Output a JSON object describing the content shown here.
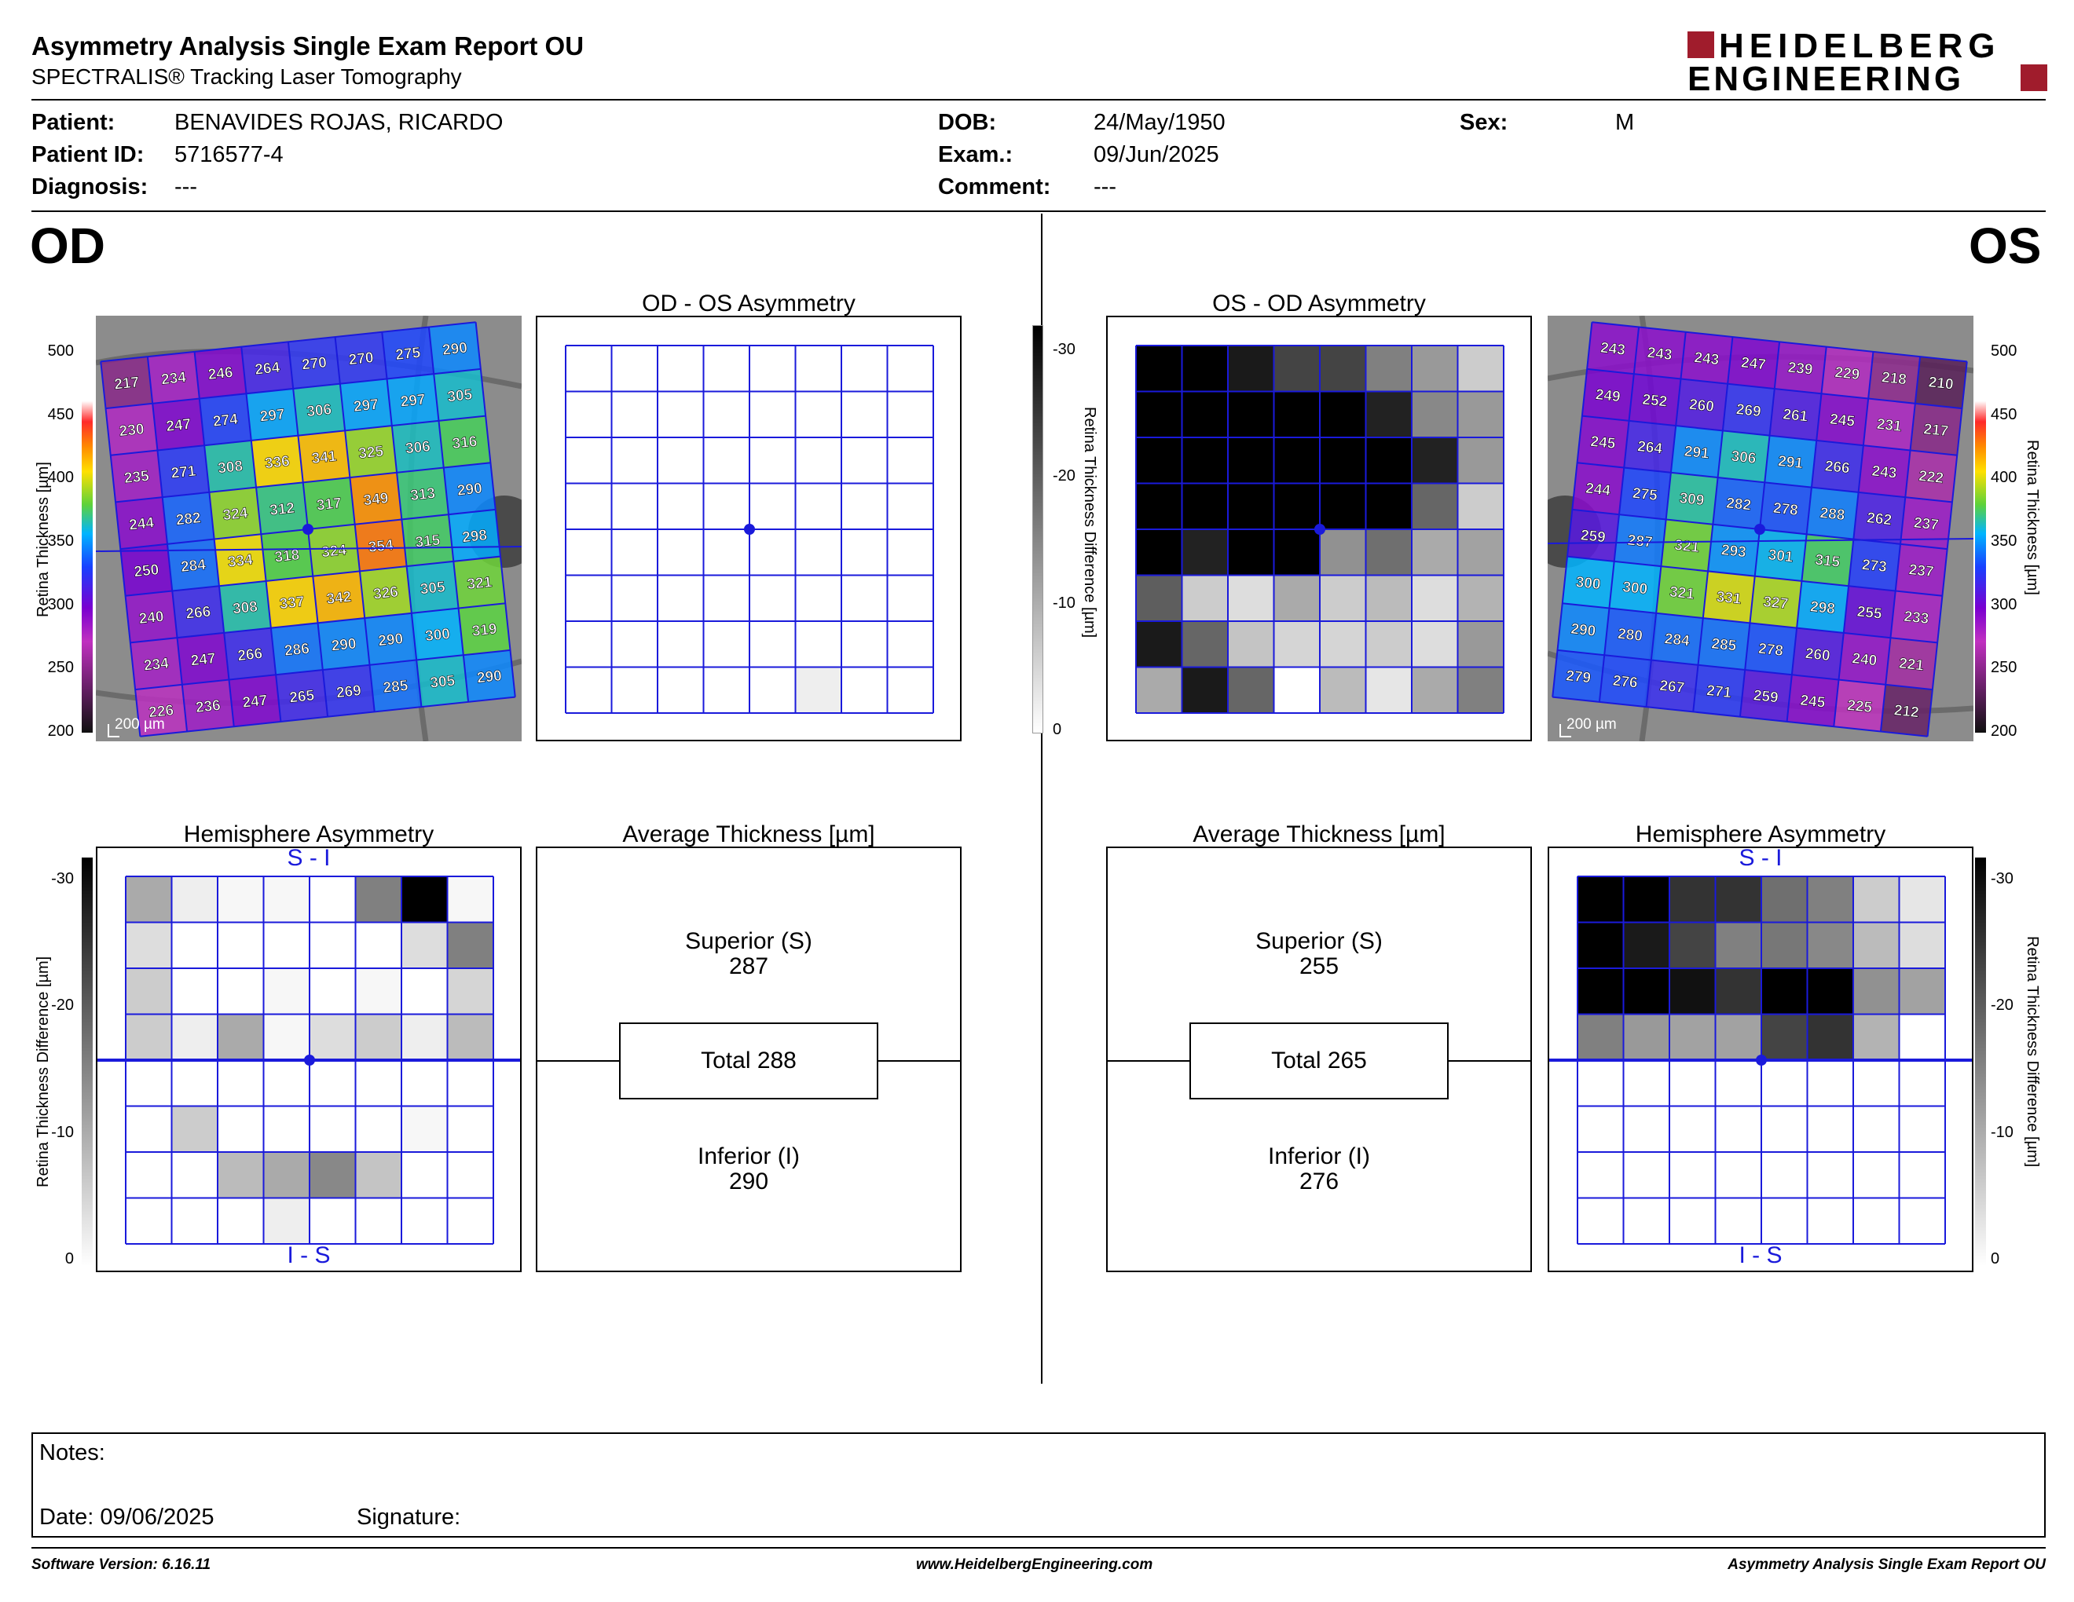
{
  "header": {
    "title": "Asymmetry Analysis Single Exam Report OU",
    "subtitle": "SPECTRALIS® Tracking Laser Tomography",
    "logo_line1": "HEIDELBERG",
    "logo_line2": "ENGINEERING"
  },
  "patient": {
    "patient_label": "Patient:",
    "patient_value": "BENAVIDES ROJAS, RICARDO",
    "id_label": "Patient ID:",
    "id_value": "5716577-4",
    "diagnosis_label": "Diagnosis:",
    "diagnosis_value": "---",
    "dob_label": "DOB:",
    "dob_value": "24/May/1950",
    "exam_label": "Exam.:",
    "exam_value": "09/Jun/2025",
    "comment_label": "Comment:",
    "comment_value": "---",
    "sex_label": "Sex:",
    "sex_value": "M"
  },
  "eyes": {
    "od": "OD",
    "os": "OS"
  },
  "panels": {
    "od_asym_title": "OD - OS Asymmetry",
    "os_asym_title": "OS - OD Asymmetry",
    "hemi_title": "Hemisphere Asymmetry",
    "avg_title": "Average Thickness [µm]",
    "si": "S - I",
    "is": "I - S",
    "scale_bar": "200 µm"
  },
  "scales": {
    "thickness_label": "Retina  Thickness [µm]",
    "thickness_ticks": [
      "500",
      "450",
      "400",
      "350",
      "300",
      "250",
      "200"
    ],
    "diff_label": "Retina Thickness Difference [µm]",
    "diff_ticks": [
      "-30",
      "-20",
      "-10",
      "0"
    ]
  },
  "od_avg": {
    "superior_label": "Superior (S)",
    "superior": "287",
    "total": "Total 288",
    "inferior_label": "Inferior (I)",
    "inferior": "290"
  },
  "os_avg": {
    "superior_label": "Superior (S)",
    "superior": "255",
    "total": "Total 265",
    "inferior_label": "Inferior (I)",
    "inferior": "276"
  },
  "od_thickness": [
    [
      217,
      234,
      246,
      264,
      270,
      270,
      275,
      290
    ],
    [
      230,
      247,
      274,
      297,
      306,
      297,
      297,
      305
    ],
    [
      235,
      271,
      308,
      336,
      341,
      325,
      306,
      316
    ],
    [
      244,
      282,
      324,
      312,
      317,
      349,
      313,
      290
    ],
    [
      250,
      284,
      334,
      318,
      324,
      354,
      315,
      298
    ],
    [
      240,
      266,
      308,
      337,
      342,
      326,
      305,
      321
    ],
    [
      234,
      247,
      266,
      286,
      290,
      290,
      300,
      319
    ],
    [
      226,
      236,
      247,
      265,
      269,
      285,
      305,
      290
    ]
  ],
  "os_thickness": [
    [
      243,
      243,
      243,
      247,
      239,
      229,
      218,
      210
    ],
    [
      249,
      252,
      260,
      269,
      261,
      245,
      231,
      217
    ],
    [
      245,
      264,
      291,
      306,
      291,
      266,
      243,
      222
    ],
    [
      244,
      275,
      309,
      282,
      278,
      288,
      262,
      237
    ],
    [
      259,
      287,
      321,
      293,
      301,
      315,
      273,
      237
    ],
    [
      300,
      300,
      321,
      331,
      327,
      298,
      255,
      233
    ],
    [
      290,
      280,
      284,
      285,
      278,
      260,
      240,
      221
    ],
    [
      279,
      276,
      267,
      271,
      259,
      245,
      225,
      212
    ]
  ],
  "od_os_asymmetry": [
    [
      0,
      0,
      0,
      0,
      0,
      0,
      0,
      0
    ],
    [
      0,
      0,
      0,
      0,
      0,
      0,
      0,
      0
    ],
    [
      0,
      0,
      0,
      0,
      0,
      0,
      0,
      0
    ],
    [
      0,
      0,
      0,
      0,
      0,
      0,
      0,
      0
    ],
    [
      0,
      0,
      0,
      0,
      0,
      0,
      0,
      0
    ],
    [
      0,
      0,
      0,
      0,
      0,
      0,
      0,
      0
    ],
    [
      0,
      0,
      0,
      0,
      0,
      0,
      0,
      0
    ],
    [
      0,
      0,
      0,
      0,
      0,
      2,
      0,
      0
    ]
  ],
  "os_od_asymmetry": [
    [
      30,
      30,
      27,
      22,
      22,
      15,
      12,
      6
    ],
    [
      30,
      30,
      30,
      30,
      30,
      26,
      14,
      12
    ],
    [
      30,
      30,
      30,
      30,
      30,
      30,
      26,
      12
    ],
    [
      30,
      30,
      30,
      30,
      30,
      30,
      18,
      6
    ],
    [
      30,
      26,
      30,
      30,
      13,
      17,
      10,
      11
    ],
    [
      19,
      6,
      4,
      10,
      6,
      8,
      4,
      9
    ],
    [
      27,
      18,
      7,
      5,
      5,
      6,
      4,
      12
    ],
    [
      10,
      27,
      18,
      0,
      8,
      3,
      10,
      15
    ]
  ],
  "od_hemisphere": [
    [
      10,
      2,
      1,
      1,
      0,
      15,
      30,
      1
    ],
    [
      4,
      0,
      0,
      0,
      0,
      0,
      4,
      15
    ],
    [
      6,
      0,
      0,
      1,
      0,
      1,
      0,
      5
    ],
    [
      6,
      2,
      10,
      1,
      4,
      6,
      2,
      8
    ],
    [
      0,
      0,
      0,
      0,
      0,
      0,
      0,
      0
    ],
    [
      0,
      6,
      0,
      0,
      0,
      0,
      1,
      0
    ],
    [
      0,
      0,
      8,
      10,
      14,
      7,
      0,
      0
    ],
    [
      0,
      0,
      0,
      2,
      0,
      0,
      0,
      0
    ]
  ],
  "os_hemisphere": [
    [
      30,
      30,
      24,
      24,
      17,
      15,
      6,
      3
    ],
    [
      30,
      27,
      22,
      15,
      16,
      14,
      8,
      4
    ],
    [
      30,
      30,
      28,
      24,
      30,
      30,
      13,
      11
    ],
    [
      15,
      12,
      11,
      11,
      22,
      24,
      9,
      0
    ],
    [
      0,
      0,
      0,
      0,
      0,
      0,
      0,
      0
    ],
    [
      0,
      0,
      0,
      0,
      0,
      0,
      0,
      0
    ],
    [
      0,
      0,
      0,
      0,
      0,
      0,
      0,
      0
    ],
    [
      0,
      0,
      0,
      0,
      0,
      0,
      0,
      0
    ]
  ],
  "notes": {
    "notes_label": "Notes:",
    "date_label": "Date: 09/06/2025",
    "signature_label": "Signature:"
  },
  "footer": {
    "version": "Software Version: 6.16.11",
    "url": "www.HeidelbergEngineering.com",
    "report": "Asymmetry Analysis Single Exam Report OU"
  },
  "colors": {
    "grid_blue": "#1a1adb",
    "logo_red": "#a01c2c"
  }
}
